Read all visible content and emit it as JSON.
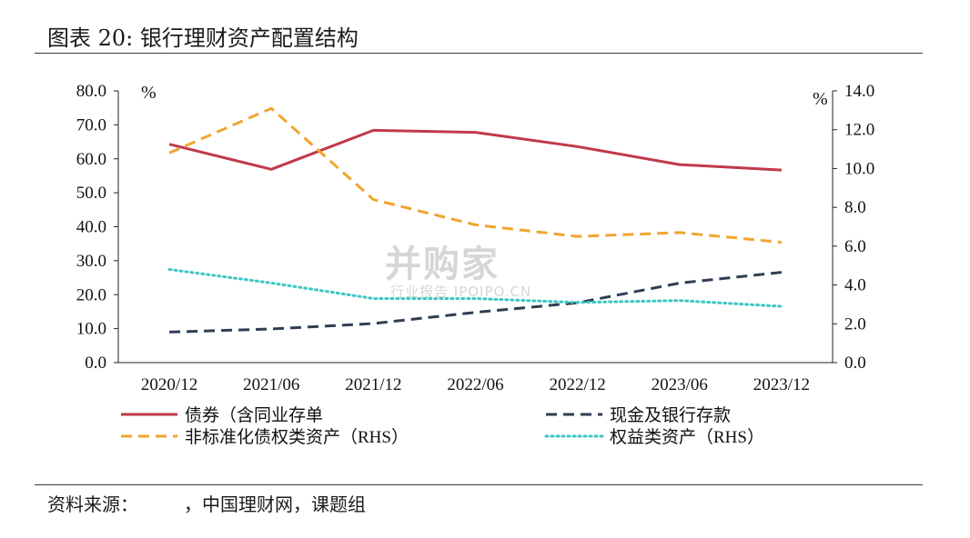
{
  "title": "图表 20: 银行理财资产配置结构",
  "source": "资料来源：　　　，中国理财网，课题组",
  "watermark": {
    "main": "并购家",
    "sub": "行业报告 IPOIPO.CN"
  },
  "chart_data": {
    "type": "line",
    "categories": [
      "2020/12",
      "2021/06",
      "2021/12",
      "2022/06",
      "2022/12",
      "2023/06",
      "2023/12"
    ],
    "left_axis": {
      "unit": "%",
      "ylim": [
        0,
        80
      ],
      "ticks": [
        "80.0",
        "70.0",
        "60.0",
        "50.0",
        "40.0",
        "30.0",
        "20.0",
        "10.0",
        "0.0"
      ]
    },
    "right_axis": {
      "unit": "%",
      "ylim": [
        0,
        14
      ],
      "ticks": [
        "14.0",
        "12.0",
        "10.0",
        "8.0",
        "6.0",
        "4.0",
        "2.0",
        "0.0"
      ]
    },
    "series": [
      {
        "name": "债券（含同业存单",
        "axis": "left",
        "color": "#c0394b",
        "style": "solid",
        "values": [
          64.3,
          56.9,
          68.4,
          67.8,
          63.6,
          58.3,
          56.7
        ]
      },
      {
        "name": "现金及银行存款",
        "axis": "left",
        "color": "#2f3e54",
        "style": "dashed",
        "values": [
          9.0,
          9.9,
          11.5,
          14.8,
          17.6,
          23.4,
          26.6
        ]
      },
      {
        "name": "非标准化债权类资产（RHS）",
        "axis": "right",
        "color": "#f0a530",
        "style": "dashed",
        "values": [
          10.8,
          13.1,
          8.4,
          7.1,
          6.5,
          6.7,
          6.2
        ]
      },
      {
        "name": "权益类资产（RHS）",
        "axis": "right",
        "color": "#3cc6c3",
        "style": "dotted",
        "values": [
          4.8,
          4.1,
          3.3,
          3.3,
          3.1,
          3.2,
          2.9
        ]
      }
    ],
    "legend_position": "bottom",
    "grid": false
  }
}
